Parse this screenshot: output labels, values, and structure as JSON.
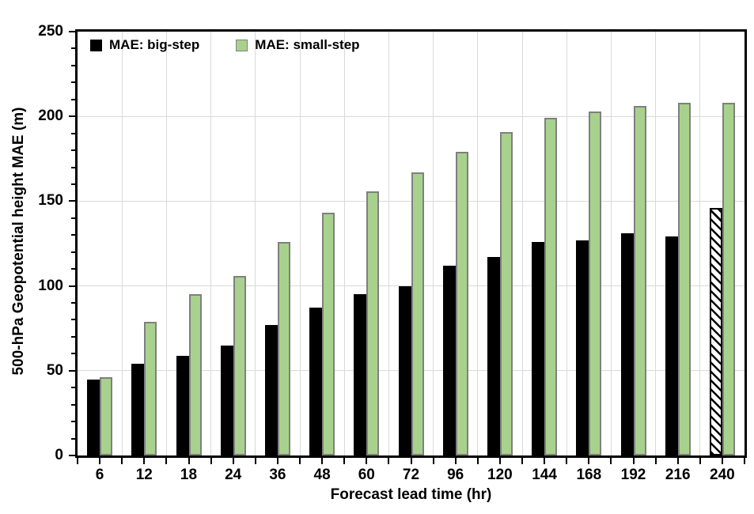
{
  "chart_data": {
    "type": "bar",
    "title": "",
    "xlabel": "Forecast lead time (hr)",
    "ylabel": "500-hPa Geopotential height MAE (m)",
    "categories": [
      "6",
      "12",
      "18",
      "24",
      "36",
      "48",
      "60",
      "72",
      "96",
      "120",
      "144",
      "168",
      "192",
      "216",
      "240"
    ],
    "series": [
      {
        "name": "MAE: big-step",
        "color": "#000000",
        "values": [
          45,
          54,
          59,
          65,
          77,
          87,
          95,
          100,
          112,
          117,
          126,
          127,
          131,
          129,
          146
        ],
        "hatched_categories": [
          "240"
        ],
        "hatch_style": "black-white-diagonal"
      },
      {
        "name": "MAE: small-step",
        "color": "#a9d18e",
        "border_color": "#7f7f7f",
        "values": [
          46,
          79,
          95,
          106,
          126,
          143,
          156,
          167,
          179,
          191,
          199,
          203,
          206,
          208,
          208
        ]
      }
    ],
    "ylim": [
      0,
      250
    ],
    "y_major_step": 50,
    "y_minor_step": 10,
    "y_tick_labels": [
      "0",
      "50",
      "100",
      "150",
      "200",
      "250"
    ],
    "grid": true,
    "gridline_color": "#d9d9d9",
    "frame_color": "#000000",
    "legend_position": "top-left-inside"
  }
}
